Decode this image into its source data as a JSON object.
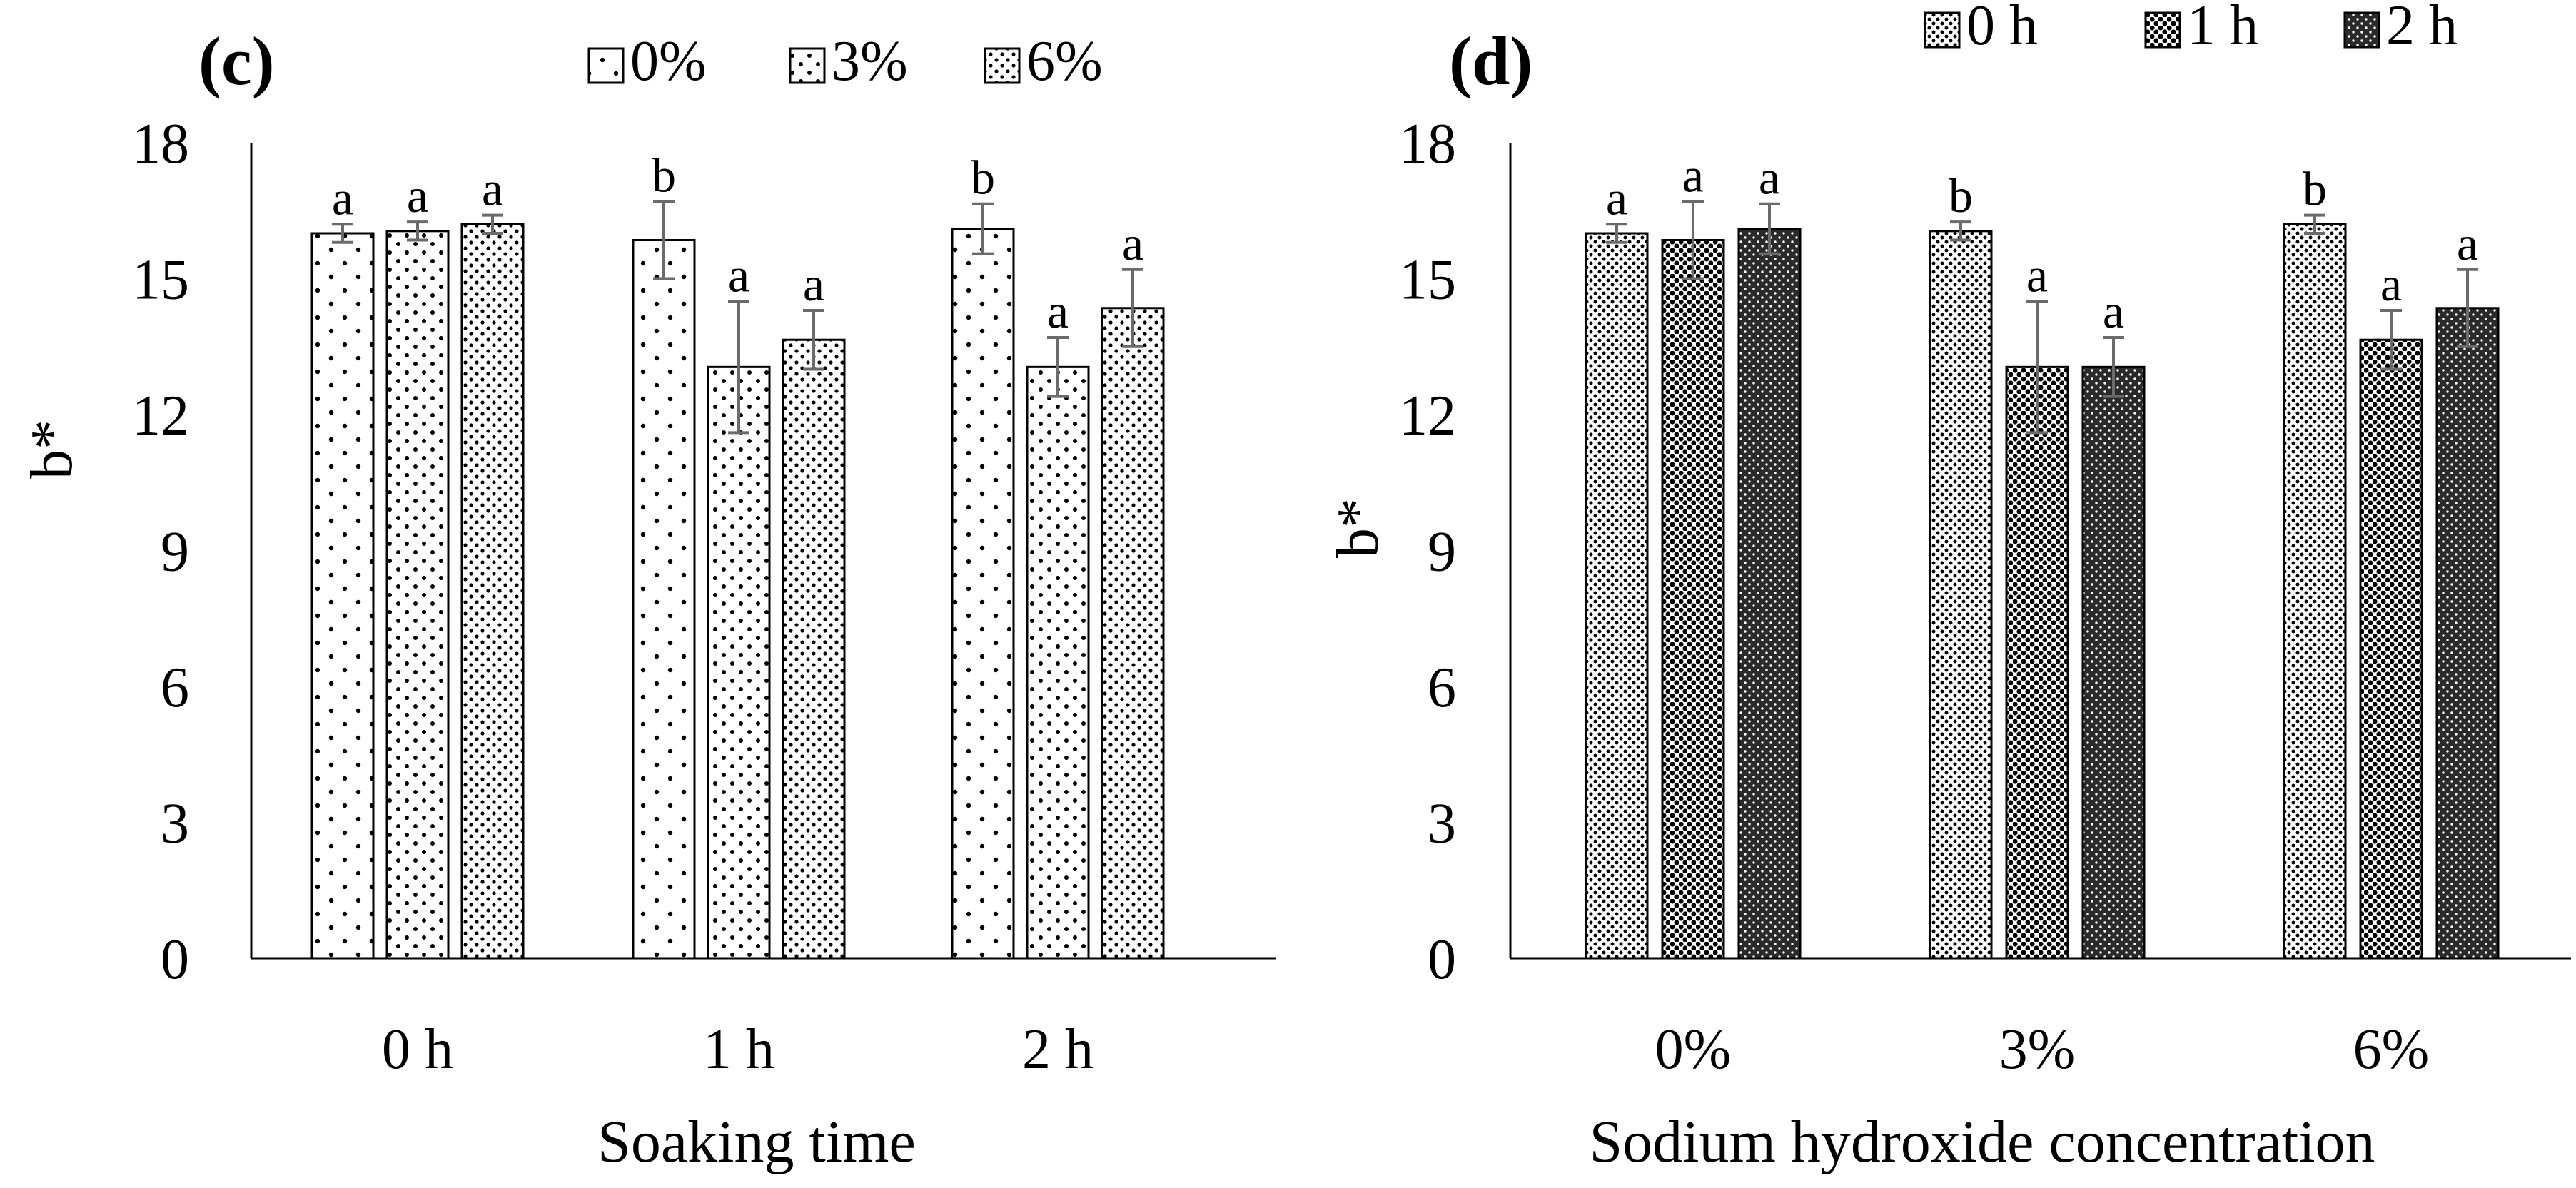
{
  "chart_data": [
    {
      "panel_label": "(c)",
      "type": "bar",
      "title": "",
      "xlabel": "Soaking time",
      "ylabel": "b*",
      "categories": [
        "0 h",
        "1 h",
        "2 h"
      ],
      "ylim": [
        0,
        18
      ],
      "yticks": [
        "0",
        "3",
        "6",
        "9",
        "12",
        "15",
        "18"
      ],
      "grid": false,
      "legend_position": "top",
      "series": [
        {
          "name": "0%",
          "pattern": "dots-sparse",
          "values": [
            16.0,
            15.85,
            16.1
          ],
          "errors": [
            0.2,
            0.85,
            0.55
          ],
          "letters": [
            "a",
            "b",
            "b"
          ]
        },
        {
          "name": "3%",
          "pattern": "dots-medium",
          "values": [
            16.05,
            13.05,
            13.05
          ],
          "errors": [
            0.2,
            1.45,
            0.65
          ],
          "letters": [
            "a",
            "a",
            "a"
          ]
        },
        {
          "name": "6%",
          "pattern": "dots-dense",
          "values": [
            16.2,
            13.65,
            14.35
          ],
          "errors": [
            0.2,
            0.65,
            0.85
          ],
          "letters": [
            "a",
            "a",
            "a"
          ]
        }
      ]
    },
    {
      "panel_label": "(d)",
      "type": "bar",
      "title": "",
      "xlabel": "Sodium hydroxide concentration",
      "ylabel": "b*",
      "categories": [
        "0%",
        "3%",
        "6%"
      ],
      "ylim": [
        0,
        18
      ],
      "yticks": [
        "0",
        "3",
        "6",
        "9",
        "12",
        "15",
        "18"
      ],
      "grid": false,
      "legend_position": "top",
      "series": [
        {
          "name": "0 h",
          "pattern": "fine-light",
          "values": [
            16.0,
            16.05,
            16.2
          ],
          "errors": [
            0.2,
            0.2,
            0.2
          ],
          "letters": [
            "a",
            "b",
            "b"
          ]
        },
        {
          "name": "1 h",
          "pattern": "fine-medium",
          "values": [
            15.85,
            13.05,
            13.65
          ],
          "errors": [
            0.85,
            1.45,
            0.65
          ],
          "letters": [
            "a",
            "a",
            "a"
          ]
        },
        {
          "name": "2 h",
          "pattern": "fine-dark",
          "values": [
            16.1,
            13.05,
            14.35
          ],
          "errors": [
            0.55,
            0.65,
            0.85
          ],
          "letters": [
            "a",
            "a",
            "a"
          ]
        }
      ]
    }
  ]
}
